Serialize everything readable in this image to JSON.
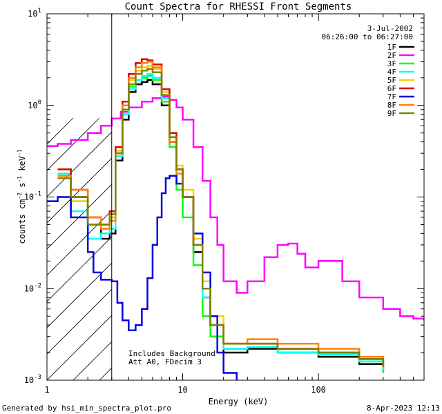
{
  "chart_data": {
    "type": "line",
    "title": "Count Spectra for RHESSI Front Segments",
    "xlabel": "Energy (keV)",
    "ylabel": "counts cm",
    "ylabel_sup1": "-2",
    "ylabel_mid": " s",
    "ylabel_sup2": "-1",
    "ylabel_end": " keV",
    "ylabel_sup3": "-1",
    "xscale": "log",
    "yscale": "log",
    "xlim": [
      1,
      600
    ],
    "ylim": [
      0.001,
      10
    ],
    "x_ticks": [
      {
        "value": 1,
        "label": "1"
      },
      {
        "value": 10,
        "label": "10"
      },
      {
        "value": 100,
        "label": "100"
      }
    ],
    "y_ticks": [
      {
        "value": 0.001,
        "base": "10",
        "exp": "-3"
      },
      {
        "value": 0.01,
        "base": "10",
        "exp": "-2"
      },
      {
        "value": 0.1,
        "base": "10",
        "exp": "-1"
      },
      {
        "value": 1,
        "base": "10",
        "exp": "0"
      },
      {
        "value": 10,
        "base": "10",
        "exp": "1"
      }
    ],
    "hatched_region_max_kev": 3,
    "date": "3-Jul-2002",
    "time_range": "06:26:00 to 06:27:00",
    "annotation_line1": "Includes Background",
    "annotation_line2": "Att A0, FDecim 3",
    "legend_position": "top-right",
    "series": [
      {
        "name": "1F",
        "color": "#000000",
        "x": [
          1.2,
          1.5,
          2,
          2.5,
          2.9,
          3.2,
          3.6,
          4,
          4.5,
          5,
          5.5,
          6,
          7,
          8,
          9,
          10,
          12,
          14,
          16,
          20,
          30,
          50,
          100,
          200,
          300
        ],
        "y": [
          0.18,
          0.1,
          0.05,
          0.035,
          0.04,
          0.25,
          0.7,
          1.4,
          1.7,
          1.8,
          1.9,
          1.7,
          1.0,
          0.4,
          0.2,
          0.1,
          0.025,
          0.008,
          0.004,
          0.002,
          0.0022,
          0.002,
          0.0018,
          0.0015,
          0.0012
        ]
      },
      {
        "name": "2F",
        "color": "#ff00ff",
        "x": [
          1,
          1.2,
          1.5,
          2,
          2.5,
          3,
          3.5,
          4,
          5,
          6,
          7,
          8,
          9,
          10,
          12,
          14,
          16,
          18,
          20,
          25,
          30,
          40,
          50,
          60,
          70,
          80,
          100,
          150,
          200,
          300,
          400,
          500,
          600
        ],
        "y": [
          0.36,
          0.38,
          0.42,
          0.5,
          0.6,
          0.72,
          0.85,
          0.95,
          1.1,
          1.2,
          1.25,
          1.15,
          0.95,
          0.7,
          0.35,
          0.15,
          0.06,
          0.03,
          0.012,
          0.009,
          0.012,
          0.022,
          0.03,
          0.031,
          0.024,
          0.017,
          0.02,
          0.012,
          0.008,
          0.006,
          0.005,
          0.0047,
          0.0045
        ]
      },
      {
        "name": "3F",
        "color": "#00ff00",
        "x": [
          1.2,
          1.5,
          2,
          2.5,
          2.9,
          3.2,
          3.6,
          4,
          4.5,
          5,
          5.5,
          6,
          7,
          8,
          9,
          10,
          12,
          14,
          16,
          20,
          30,
          50,
          100,
          200,
          300
        ],
        "y": [
          0.2,
          0.09,
          0.05,
          0.045,
          0.06,
          0.3,
          0.9,
          1.6,
          1.9,
          2.0,
          2.1,
          1.9,
          1.1,
          0.35,
          0.12,
          0.06,
          0.018,
          0.005,
          0.003,
          0.0022,
          0.0023,
          0.002,
          0.0019,
          0.0016,
          0.0012
        ]
      },
      {
        "name": "4F",
        "color": "#00ffff",
        "x": [
          1.2,
          1.5,
          2,
          2.5,
          2.9,
          3.2,
          3.6,
          4,
          4.5,
          5,
          5.5,
          6,
          7,
          8,
          9,
          10,
          12,
          14,
          16,
          20,
          30,
          50,
          100,
          200,
          300
        ],
        "y": [
          0.18,
          0.07,
          0.035,
          0.04,
          0.045,
          0.28,
          0.8,
          1.5,
          1.9,
          2.1,
          2.2,
          2.0,
          1.2,
          0.45,
          0.2,
          0.1,
          0.03,
          0.008,
          0.004,
          0.0022,
          0.0023,
          0.002,
          0.0019,
          0.0016,
          0.0013
        ]
      },
      {
        "name": "5F",
        "color": "#ffcc00",
        "x": [
          1.2,
          1.5,
          2,
          2.5,
          2.9,
          3.2,
          3.6,
          4,
          4.5,
          5,
          5.5,
          6,
          7,
          8,
          9,
          10,
          12,
          14,
          16,
          20,
          30,
          50,
          100,
          200,
          300
        ],
        "y": [
          0.2,
          0.09,
          0.05,
          0.045,
          0.06,
          0.32,
          1.0,
          1.9,
          2.4,
          2.6,
          2.7,
          2.5,
          1.4,
          0.5,
          0.22,
          0.12,
          0.035,
          0.012,
          0.005,
          0.0025,
          0.0025,
          0.0022,
          0.002,
          0.0017,
          0.0014
        ]
      },
      {
        "name": "6F",
        "color": "#e00000",
        "x": [
          1.2,
          1.5,
          2,
          2.5,
          2.9,
          3.2,
          3.6,
          4,
          4.5,
          5,
          5.5,
          6,
          7,
          8,
          9,
          10,
          12,
          14,
          16,
          20,
          30,
          50,
          100,
          200,
          300
        ],
        "y": [
          0.2,
          0.12,
          0.06,
          0.05,
          0.07,
          0.35,
          1.1,
          2.2,
          2.9,
          3.2,
          3.1,
          2.8,
          1.5,
          0.5,
          0.2,
          0.1,
          0.03,
          0.01,
          0.004,
          0.0025,
          0.0025,
          0.0022,
          0.002,
          0.0017,
          0.0014
        ]
      },
      {
        "name": "7F",
        "color": "#0000e0",
        "x": [
          1,
          1.2,
          1.5,
          2,
          2.2,
          2.5,
          2.8,
          3,
          3.3,
          3.6,
          4,
          4.5,
          5,
          5.5,
          6,
          6.5,
          7,
          7.5,
          8,
          9,
          10,
          12,
          14,
          16,
          18,
          20,
          25
        ],
        "y": [
          0.09,
          0.1,
          0.06,
          0.025,
          0.015,
          0.0125,
          0.0125,
          0.012,
          0.007,
          0.0045,
          0.0035,
          0.004,
          0.006,
          0.013,
          0.03,
          0.06,
          0.11,
          0.16,
          0.17,
          0.14,
          0.1,
          0.04,
          0.015,
          0.005,
          0.002,
          0.0012,
          0.001
        ]
      },
      {
        "name": "8F",
        "color": "#ff8000",
        "x": [
          1.2,
          1.5,
          2,
          2.5,
          2.9,
          3.2,
          3.6,
          4,
          4.5,
          5,
          5.5,
          6,
          7,
          8,
          9,
          10,
          12,
          14,
          16,
          20,
          30,
          50,
          100,
          200,
          300
        ],
        "y": [
          0.17,
          0.12,
          0.06,
          0.045,
          0.055,
          0.3,
          1.0,
          2.0,
          2.6,
          2.9,
          3.0,
          2.6,
          1.3,
          0.4,
          0.18,
          0.1,
          0.03,
          0.01,
          0.004,
          0.0025,
          0.0028,
          0.0025,
          0.0022,
          0.0018,
          0.0014
        ]
      },
      {
        "name": "9F",
        "color": "#808000",
        "x": [
          1.2,
          1.5,
          2,
          2.5,
          2.9,
          3.2,
          3.6,
          4,
          4.5,
          5,
          5.5,
          6,
          7,
          8,
          9,
          10,
          12,
          14,
          16,
          20,
          30,
          50,
          100,
          200,
          300
        ],
        "y": [
          0.16,
          0.1,
          0.05,
          0.05,
          0.065,
          0.3,
          0.9,
          1.7,
          2.2,
          2.4,
          2.5,
          2.3,
          1.3,
          0.45,
          0.2,
          0.1,
          0.03,
          0.01,
          0.004,
          0.0025,
          0.0025,
          0.0022,
          0.002,
          0.0017,
          0.0014
        ]
      }
    ]
  },
  "footer": {
    "generated_by": "Generated by hsi_min_spectra_plot.pro",
    "timestamp": "8-Apr-2023 12:13"
  }
}
